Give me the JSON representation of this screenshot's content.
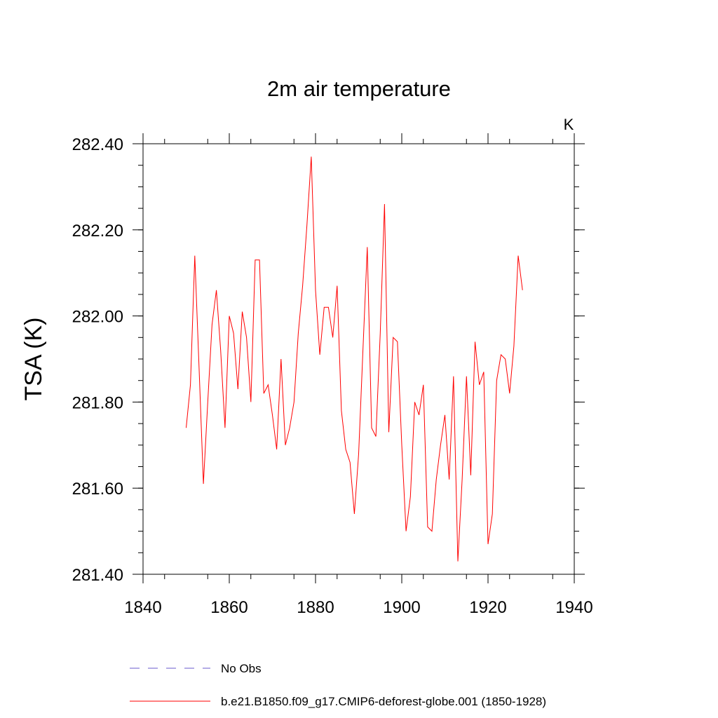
{
  "chart_data": {
    "type": "line",
    "title": "2m air temperature",
    "units": "K",
    "xlabel": "",
    "ylabel": "TSA  (K)",
    "xlim": [
      1840,
      1940
    ],
    "ylim": [
      281.4,
      282.4
    ],
    "x_ticks": [
      1840,
      1860,
      1880,
      1900,
      1920,
      1940
    ],
    "x_tick_labels": [
      "1840",
      "1860",
      "1880",
      "1900",
      "1920",
      "1940"
    ],
    "y_ticks": [
      281.4,
      281.6,
      281.8,
      282.0,
      282.2,
      282.4
    ],
    "y_tick_labels": [
      "281.40",
      "281.60",
      "281.80",
      "282.00",
      "282.20",
      "282.40"
    ],
    "legend_position": "bottom",
    "legend": [
      {
        "label": "No Obs",
        "color": "#6a5acd",
        "style": "dashed"
      },
      {
        "label": "b.e21.B1850.f09_g17.CMIP6-deforest-globe.001 (1850-1928)",
        "color": "#ff0000",
        "style": "solid"
      }
    ],
    "series": [
      {
        "name": "b.e21.B1850.f09_g17.CMIP6-deforest-globe.001 (1850-1928)",
        "color": "#ff0000",
        "x": [
          1850,
          1851,
          1852,
          1853,
          1854,
          1855,
          1856,
          1857,
          1858,
          1859,
          1860,
          1861,
          1862,
          1863,
          1864,
          1865,
          1866,
          1867,
          1868,
          1869,
          1870,
          1871,
          1872,
          1873,
          1874,
          1875,
          1876,
          1877,
          1878,
          1879,
          1880,
          1881,
          1882,
          1883,
          1884,
          1885,
          1886,
          1887,
          1888,
          1889,
          1890,
          1891,
          1892,
          1893,
          1894,
          1895,
          1896,
          1897,
          1898,
          1899,
          1900,
          1901,
          1902,
          1903,
          1904,
          1905,
          1906,
          1907,
          1908,
          1909,
          1910,
          1911,
          1912,
          1913,
          1914,
          1915,
          1916,
          1917,
          1918,
          1919,
          1920,
          1921,
          1922,
          1923,
          1924,
          1925,
          1926,
          1927,
          1928
        ],
        "values": [
          281.74,
          281.84,
          282.14,
          281.88,
          281.61,
          281.8,
          281.98,
          282.06,
          281.92,
          281.74,
          282.0,
          281.96,
          281.83,
          282.01,
          281.95,
          281.8,
          282.13,
          282.13,
          281.82,
          281.84,
          281.77,
          281.69,
          281.9,
          281.7,
          281.74,
          281.8,
          281.96,
          282.07,
          282.21,
          282.37,
          282.06,
          281.91,
          282.02,
          282.02,
          281.95,
          282.07,
          281.78,
          281.69,
          281.66,
          281.54,
          281.68,
          281.92,
          282.16,
          281.74,
          281.72,
          281.96,
          282.26,
          281.73,
          281.95,
          281.94,
          281.7,
          281.5,
          281.58,
          281.8,
          281.77,
          281.84,
          281.51,
          281.5,
          281.62,
          281.7,
          281.77,
          281.62,
          281.86,
          281.43,
          281.62,
          281.86,
          281.63,
          281.94,
          281.84,
          281.87,
          281.47,
          281.54,
          281.85,
          281.91,
          281.9,
          281.82,
          281.93,
          282.14,
          282.06
        ]
      }
    ]
  }
}
